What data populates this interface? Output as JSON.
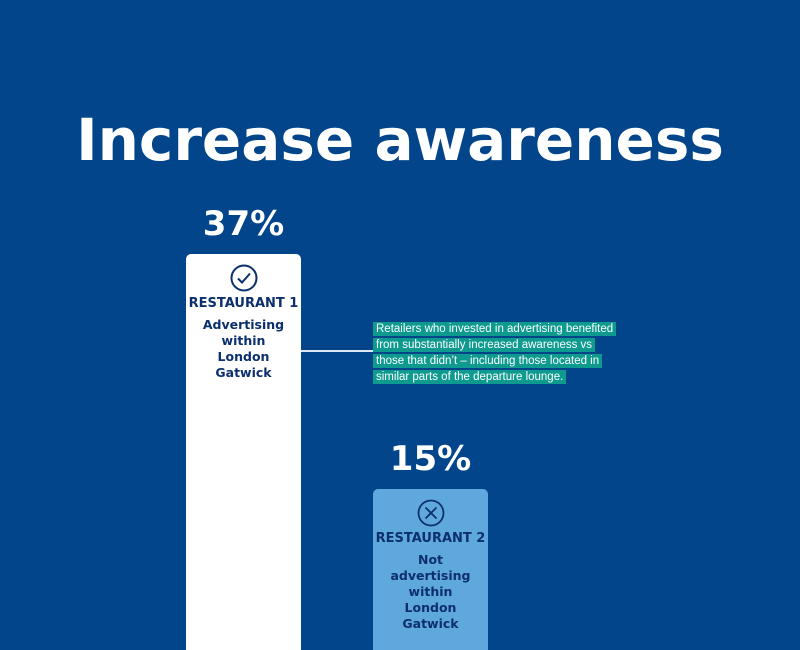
{
  "title": "Increase awareness",
  "colors": {
    "background": "#02458a",
    "bar_1": "#ffffff",
    "bar_2": "#5fa8de",
    "note_highlight": "#0e9a8f",
    "label_text": "#0c2f6e"
  },
  "chart_data": {
    "type": "bar",
    "title": "Increase awareness",
    "categories": [
      "RESTAURANT 1",
      "RESTAURANT 2"
    ],
    "values": [
      37,
      15
    ],
    "value_labels": [
      "37%",
      "15%"
    ],
    "descriptions": [
      "Advertising within London Gatwick",
      "Not advertising within London Gatwick"
    ],
    "icons": [
      "check-circle-icon",
      "x-circle-icon"
    ],
    "ylim": [
      0,
      37
    ],
    "grid": false,
    "annotation": "Retailers who invested in advertising benefited from substantially increased awareness vs those that didn’t – including those located in similar parts of the departure lounge."
  }
}
